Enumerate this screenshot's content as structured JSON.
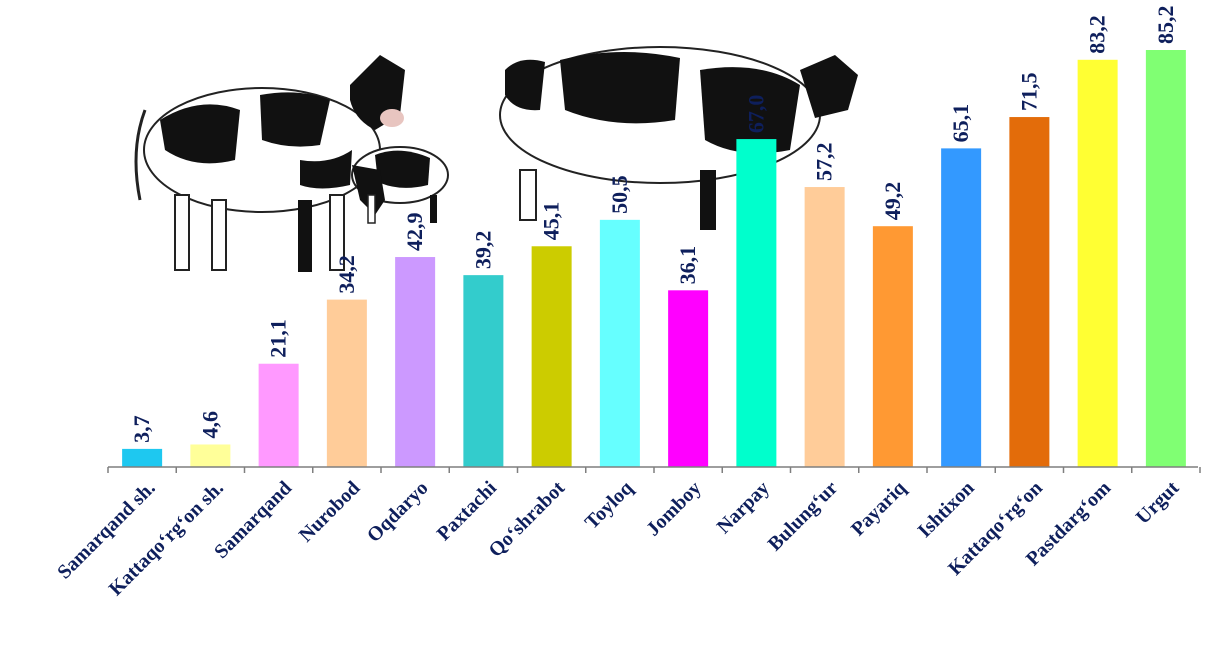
{
  "chart_data": {
    "type": "bar",
    "title": "",
    "xlabel": "",
    "ylabel": "",
    "ylim": [
      0,
      90
    ],
    "grid": false,
    "legend": "none",
    "categories": [
      "Samarqand sh.",
      "Kattaqo‘rg‘on sh.",
      "Samarqand",
      "Nurobod",
      "Oqdaryo",
      "Paxtachi",
      "Qo‘shrabot",
      "Toyloq",
      "Jomboy",
      "Narpay",
      "Bulung‘ur",
      "Payariq",
      "Ishtixon",
      "Kattaqo‘rg‘on",
      "Pastdarg‘om",
      "Urgut"
    ],
    "values": [
      3.7,
      4.6,
      21.1,
      34.2,
      42.9,
      39.2,
      45.1,
      50.5,
      36.1,
      67.0,
      57.2,
      49.2,
      65.1,
      71.5,
      83.2,
      85.2
    ],
    "value_labels": [
      "3,7",
      "4,6",
      "21,1",
      "34,2",
      "42,9",
      "39,2",
      "45,1",
      "50,5",
      "36,1",
      "67,0",
      "57,2",
      "49,2",
      "65,1",
      "71,5",
      "83,2",
      "85,2"
    ],
    "colors": [
      "#1ec8f0",
      "#ffff99",
      "#ff99ff",
      "#ffcc99",
      "#cc99ff",
      "#33cccc",
      "#cccc00",
      "#66ffff",
      "#ff00ff",
      "#00ffcc",
      "#ffcc99",
      "#ff9933",
      "#3399ff",
      "#e36c0a",
      "#ffff33",
      "#80ff73"
    ],
    "label_color": "#0e1f5c",
    "background_images": [
      "cow-illustration",
      "calf-illustration",
      "cow-illustration"
    ]
  }
}
